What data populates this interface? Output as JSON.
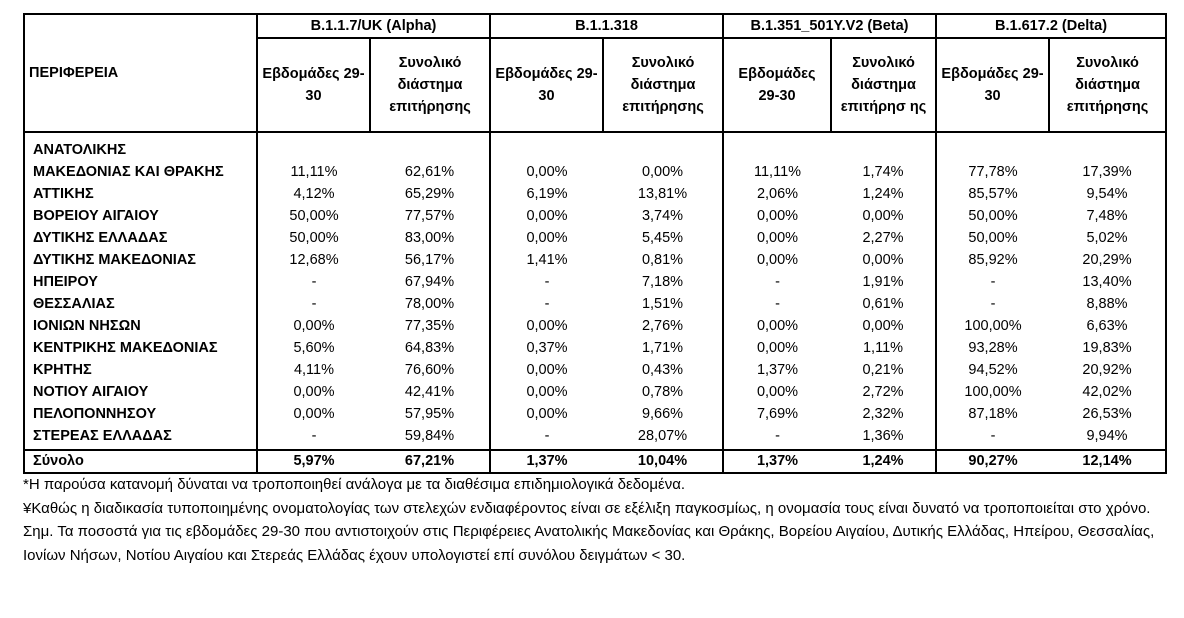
{
  "table": {
    "region_header": "ΠΕΡΙΦΕΡΕΙΑ",
    "variants": [
      {
        "name": "B.1.1.7/UK  (Alpha)",
        "col1": "Εβδομάδες 29-30",
        "col2": "Συνολικό διάστημα επιτήρησης"
      },
      {
        "name": "B.1.1.318",
        "col1": "Εβδομάδες 29-30",
        "col2": "Συνολικό διάστημα επιτήρησης"
      },
      {
        "name": "B.1.351_501Y.V2 (Beta)",
        "col1": "Εβδομάδες 29-30",
        "col2": "Συνολικό διάστημα επιτήρησ ης"
      },
      {
        "name": "B.1.617.2 (Delta)",
        "col1": "Εβδομάδες 29-30",
        "col2": "Συνολικό διάστημα επιτήρησης"
      }
    ],
    "rows": [
      {
        "region_line1": "ΑΝΑΤΟΛΙΚΗΣ",
        "region": "ΜΑΚΕΔΟΝΙΑΣ ΚΑΙ ΘΡΑΚΗΣ",
        "v": [
          "11,11%",
          "62,61%",
          "0,00%",
          "0,00%",
          "11,11%",
          "1,74%",
          "77,78%",
          "17,39%"
        ]
      },
      {
        "region": "ΑΤΤΙΚΗΣ",
        "v": [
          "4,12%",
          "65,29%",
          "6,19%",
          "13,81%",
          "2,06%",
          "1,24%",
          "85,57%",
          "9,54%"
        ]
      },
      {
        "region": "ΒΟΡΕΙΟΥ ΑΙΓΑΙΟΥ",
        "v": [
          "50,00%",
          "77,57%",
          "0,00%",
          "3,74%",
          "0,00%",
          "0,00%",
          "50,00%",
          "7,48%"
        ]
      },
      {
        "region": "ΔΥΤΙΚΗΣ ΕΛΛΑΔΑΣ",
        "v": [
          "50,00%",
          "83,00%",
          "0,00%",
          "5,45%",
          "0,00%",
          "2,27%",
          "50,00%",
          "5,02%"
        ]
      },
      {
        "region": "ΔΥΤΙΚΗΣ ΜΑΚΕΔΟΝΙΑΣ",
        "v": [
          "12,68%",
          "56,17%",
          "1,41%",
          "0,81%",
          "0,00%",
          "0,00%",
          "85,92%",
          "20,29%"
        ]
      },
      {
        "region": "ΗΠΕΙΡΟΥ",
        "v": [
          "-",
          "67,94%",
          "-",
          "7,18%",
          "-",
          "1,91%",
          "-",
          "13,40%"
        ]
      },
      {
        "region": "ΘΕΣΣΑΛΙΑΣ",
        "v": [
          "-",
          "78,00%",
          "-",
          "1,51%",
          "-",
          "0,61%",
          "-",
          "8,88%"
        ]
      },
      {
        "region": "ΙΟΝΙΩΝ ΝΗΣΩΝ",
        "v": [
          "0,00%",
          "77,35%",
          "0,00%",
          "2,76%",
          "0,00%",
          "0,00%",
          "100,00%",
          "6,63%"
        ]
      },
      {
        "region": "ΚΕΝΤΡΙΚΗΣ ΜΑΚΕΔΟΝΙΑΣ",
        "v": [
          "5,60%",
          "64,83%",
          "0,37%",
          "1,71%",
          "0,00%",
          "1,11%",
          "93,28%",
          "19,83%"
        ]
      },
      {
        "region": "ΚΡΗΤΗΣ",
        "v": [
          "4,11%",
          "76,60%",
          "0,00%",
          "0,43%",
          "1,37%",
          "0,21%",
          "94,52%",
          "20,92%"
        ]
      },
      {
        "region": "ΝΟΤΙΟΥ ΑΙΓΑΙΟΥ",
        "v": [
          "0,00%",
          "42,41%",
          "0,00%",
          "0,78%",
          "0,00%",
          "2,72%",
          "100,00%",
          "42,02%"
        ]
      },
      {
        "region": "ΠΕΛΟΠΟΝΝΗΣΟΥ",
        "v": [
          "0,00%",
          "57,95%",
          "0,00%",
          "9,66%",
          "7,69%",
          "2,32%",
          "87,18%",
          "26,53%"
        ]
      },
      {
        "region": "ΣΤΕΡΕΑΣ ΕΛΛΑΔΑΣ",
        "v": [
          "-",
          "59,84%",
          "-",
          "28,07%",
          "-",
          "1,36%",
          "-",
          "9,94%"
        ]
      }
    ],
    "total": {
      "region": "Σύνολο",
      "v": [
        "5,97%",
        "67,21%",
        "1,37%",
        "10,04%",
        "1,37%",
        "1,24%",
        "90,27%",
        "12,14%"
      ]
    }
  },
  "notes": [
    "*Η παρούσα κατανομή δύναται να τροποποιηθεί ανάλογα με τα διαθέσιμα επιδημιολογικά δεδομένα.",
    "¥Καθώς η διαδικασία τυποποιημένης ονοματολογίας των στελεχών ενδιαφέροντος είναι σε εξέλιξη παγκοσμίως, η ονομασία τους είναι δυνατό να τροποποιείται στο χρόνο.",
    "Σημ. Τα ποσοστά για τις εβδομάδες 29-30 που αντιστοιχούν στις Περιφέρειες Ανατολικής Μακεδονίας και Θράκης, Βορείου Αιγαίου, Δυτικής Ελλάδας, Ηπείρου, Θεσσαλίας, Ιονίων Νήσων, Νοτίου Αιγαίου και Στερεάς Ελλάδας έχουν υπολογιστεί επί συνόλου δειγμάτων < 30."
  ]
}
